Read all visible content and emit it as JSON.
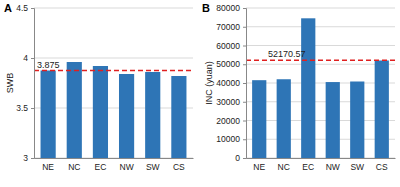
{
  "chart_data": [
    {
      "type": "bar",
      "title": "A",
      "y_label": "SWB",
      "categories": [
        "NE",
        "NC",
        "EC",
        "NW",
        "SW",
        "CS"
      ],
      "values": [
        3.875,
        3.96,
        3.92,
        3.84,
        3.86,
        3.82
      ],
      "color": "#2e75b6",
      "ylim": [
        3,
        4.5
      ],
      "yticks": [
        3,
        {
          "value": 3.5,
          "label": "3.5"
        },
        4,
        4.5
      ],
      "grid": true,
      "reference_line": {
        "value": 3.875,
        "label": "3.875",
        "color": "#e02020",
        "line_style": "dashed"
      }
    },
    {
      "type": "bar",
      "title": "B",
      "y_label": "INC (yuan)",
      "categories": [
        "NE",
        "NC",
        "EC",
        "NW",
        "SW",
        "CS"
      ],
      "values": [
        41500,
        42000,
        74500,
        40500,
        40800,
        52000
      ],
      "color": "#2e75b6",
      "ylim": [
        0,
        80000
      ],
      "yticks": [
        0,
        10000,
        20000,
        30000,
        40000,
        50000,
        60000,
        70000,
        80000
      ],
      "grid": true,
      "reference_line": {
        "value": 52170.57,
        "label": "52170.57",
        "color": "#e02020",
        "line_style": "dashed"
      }
    }
  ]
}
